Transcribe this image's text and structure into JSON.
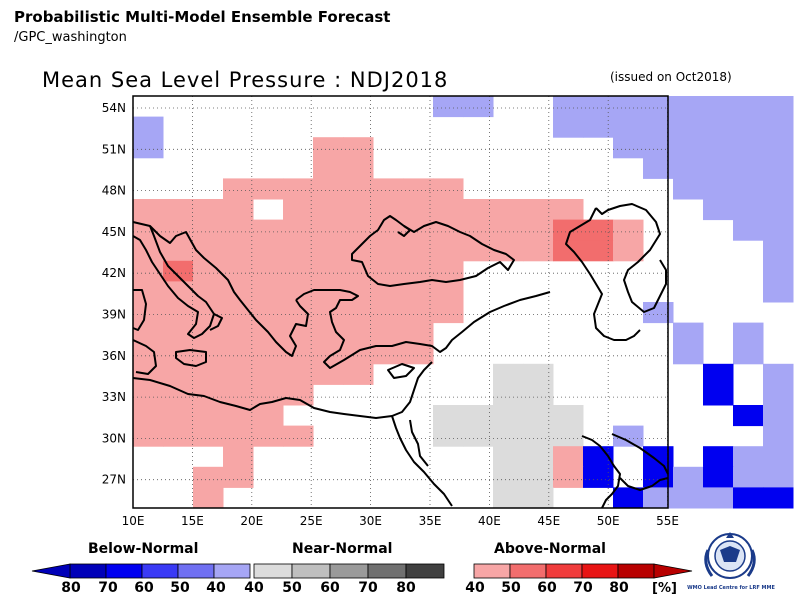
{
  "header": {
    "line1": "Probabilistic Multi-Model Ensemble Forecast",
    "line2": "/GPC_washington"
  },
  "title": "Mean Sea Level Pressure : NDJ2018",
  "issued": "(issued on Oct2018)",
  "axes": {
    "lon_ticks": [
      "10E",
      "15E",
      "20E",
      "25E",
      "30E",
      "35E",
      "40E",
      "45E",
      "50E",
      "55E"
    ],
    "lat_ticks": [
      "54N",
      "51N",
      "48N",
      "45N",
      "42N",
      "39N",
      "36N",
      "33N",
      "30N",
      "27N"
    ]
  },
  "legend": {
    "below": {
      "title": "Below-Normal",
      "labels": [
        "80",
        "70",
        "60",
        "50",
        "40"
      ],
      "colors": [
        "#0000b8",
        "#0000f0",
        "#3a3af5",
        "#7070f2",
        "#a6a6f5"
      ]
    },
    "near": {
      "title": "Near-Normal",
      "labels": [
        "40",
        "50",
        "60",
        "70",
        "80"
      ],
      "colors": [
        "#dcdcdc",
        "#bfbfbf",
        "#9a9a9a",
        "#707070",
        "#404040"
      ]
    },
    "above": {
      "title": "Above-Normal",
      "labels": [
        "40",
        "50",
        "60",
        "70",
        "80"
      ],
      "colors": [
        "#f7a6a6",
        "#f26d6d",
        "#f03c3c",
        "#e81414",
        "#b80000"
      ]
    },
    "unit": "[%]"
  },
  "logo": {
    "text": "WMO Lead Centre for LRF MME"
  },
  "map_data": {
    "grid": {
      "lon_min": 10,
      "lat_max": 55.5,
      "step": 2.5
    },
    "cells": [
      [
        " ",
        " ",
        " ",
        " ",
        " ",
        " ",
        " ",
        " ",
        " ",
        " ",
        "b",
        "b",
        " ",
        " ",
        "b",
        "b",
        "b",
        "b",
        "b",
        "b",
        "b",
        "b"
      ],
      [
        "b",
        " ",
        " ",
        " ",
        " ",
        " ",
        " ",
        " ",
        " ",
        " ",
        " ",
        " ",
        " ",
        " ",
        "b",
        "b",
        "b",
        "b",
        "b",
        "b",
        "b",
        "b"
      ],
      [
        "b",
        " ",
        " ",
        " ",
        " ",
        " ",
        "a",
        "a",
        " ",
        " ",
        " ",
        " ",
        " ",
        " ",
        " ",
        " ",
        "b",
        "b",
        "b",
        "b",
        "b",
        "b"
      ],
      [
        " ",
        " ",
        " ",
        " ",
        " ",
        " ",
        "a",
        "a",
        " ",
        " ",
        " ",
        " ",
        " ",
        " ",
        " ",
        " ",
        " ",
        "b",
        "b",
        "b",
        "b",
        "b"
      ],
      [
        " ",
        " ",
        " ",
        "a",
        "a",
        "a",
        "a",
        "a",
        "a",
        "a",
        "a",
        " ",
        " ",
        " ",
        " ",
        " ",
        " ",
        " ",
        "b",
        "b",
        "b",
        "b"
      ],
      [
        "a",
        "a",
        "a",
        "a",
        " ",
        "a",
        "a",
        "a",
        "a",
        "a",
        "a",
        "a",
        "a",
        "a",
        "a",
        " ",
        " ",
        " ",
        " ",
        "b",
        "b",
        "b"
      ],
      [
        "a",
        "a",
        "a",
        "a",
        "a",
        "a",
        "a",
        "a",
        "a",
        "a",
        "a",
        "a",
        "a",
        "a",
        "A",
        "A",
        "a",
        " ",
        " ",
        " ",
        "b",
        "b"
      ],
      [
        "a",
        "a",
        "a",
        "a",
        "a",
        "a",
        "a",
        "a",
        "a",
        "a",
        "a",
        "a",
        "a",
        "a",
        "A",
        "A",
        "a",
        " ",
        " ",
        " ",
        " ",
        "b"
      ],
      [
        "a",
        "A",
        "a",
        "a",
        "a",
        "a",
        "a",
        "a",
        "a",
        "a",
        "a",
        " ",
        " ",
        " ",
        " ",
        " ",
        " ",
        " ",
        " ",
        " ",
        " ",
        "b"
      ],
      [
        "a",
        "a",
        "a",
        "a",
        "a",
        "a",
        "a",
        "a",
        "a",
        "a",
        "a",
        " ",
        " ",
        " ",
        " ",
        " ",
        " ",
        " ",
        " ",
        " ",
        " ",
        "b"
      ],
      [
        "a",
        "a",
        "a",
        "a",
        "a",
        "a",
        "a",
        "a",
        "a",
        "a",
        "a",
        " ",
        " ",
        " ",
        " ",
        " ",
        " ",
        "b",
        " ",
        " ",
        " ",
        " "
      ],
      [
        "a",
        "a",
        "a",
        "a",
        "a",
        "a",
        "a",
        "a",
        "a",
        "a",
        " ",
        " ",
        " ",
        " ",
        " ",
        " ",
        " ",
        " ",
        "b",
        " ",
        "b",
        " "
      ],
      [
        "a",
        "a",
        "a",
        "a",
        "a",
        "a",
        "a",
        "a",
        "a",
        "a",
        " ",
        " ",
        " ",
        " ",
        " ",
        " ",
        " ",
        " ",
        "b",
        " ",
        "b",
        " "
      ],
      [
        "a",
        "a",
        "a",
        "a",
        "a",
        "a",
        "a",
        "a",
        " ",
        " ",
        " ",
        " ",
        "n",
        "n",
        " ",
        " ",
        " ",
        " ",
        " ",
        "B",
        " ",
        "b"
      ],
      [
        "a",
        "a",
        "a",
        "a",
        "a",
        "a",
        " ",
        " ",
        " ",
        " ",
        " ",
        " ",
        "n",
        "n",
        " ",
        " ",
        " ",
        " ",
        " ",
        "B",
        " ",
        "b"
      ],
      [
        "a",
        "a",
        "a",
        "a",
        "a",
        " ",
        " ",
        " ",
        " ",
        " ",
        "n",
        "n",
        "n",
        "n",
        "n",
        " ",
        " ",
        " ",
        " ",
        " ",
        "B",
        "b"
      ],
      [
        "a",
        "a",
        "a",
        "a",
        "a",
        "a",
        " ",
        " ",
        " ",
        " ",
        "n",
        "n",
        "n",
        "n",
        "n",
        " ",
        "b",
        " ",
        " ",
        " ",
        " ",
        "b"
      ],
      [
        " ",
        " ",
        " ",
        "a",
        " ",
        " ",
        " ",
        " ",
        " ",
        " ",
        " ",
        " ",
        "n",
        "n",
        "a",
        "B",
        " ",
        "B",
        " ",
        "B",
        "b",
        "b"
      ],
      [
        " ",
        " ",
        "a",
        "a",
        " ",
        " ",
        " ",
        " ",
        " ",
        " ",
        " ",
        " ",
        "n",
        "n",
        "a",
        "B",
        " ",
        "B",
        "b",
        "B",
        "b",
        "b"
      ],
      [
        " ",
        " ",
        "a",
        " ",
        " ",
        " ",
        " ",
        " ",
        " ",
        " ",
        " ",
        " ",
        "n",
        "n",
        " ",
        " ",
        "B",
        "b",
        "b",
        "b",
        "B",
        "B"
      ]
    ],
    "categories": {
      "a": "Above-Normal 40",
      "A": "Above-Normal 50",
      "b": "Below-Normal 40",
      "B": "Below-Normal 60",
      "n": "Near-Normal 40"
    }
  }
}
